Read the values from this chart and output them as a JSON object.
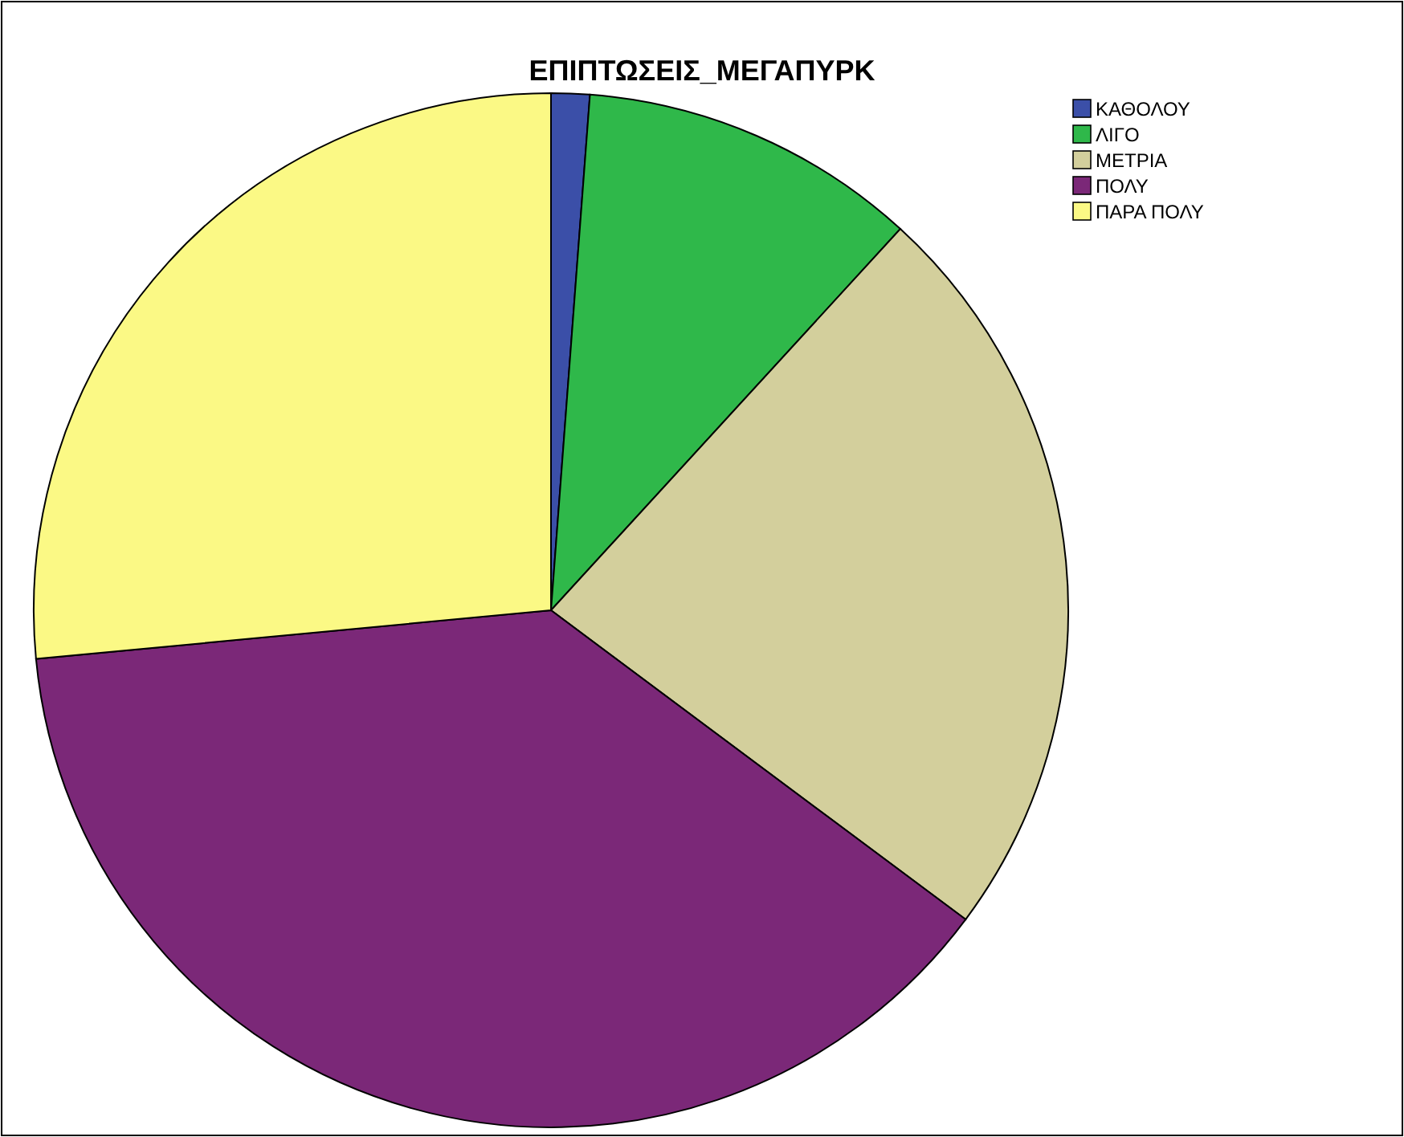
{
  "chart_data": {
    "type": "pie",
    "title": "ΕΠΙΠΤΩΣΕΙΣ_ΜΕΓΑΠΥΡΚ",
    "categories": [
      "ΚΑΘΟΛΟΥ",
      "ΛΙΓΟ",
      "ΜΕΤΡΙΑ",
      "ΠΟΛΥ",
      "ΠΑΡΑ ΠΟΛΥ"
    ],
    "values": [
      1.2,
      10.6,
      23.4,
      38.3,
      26.5
    ],
    "colors": [
      "#3b4fa8",
      "#2fb84a",
      "#d3cf9c",
      "#7b2878",
      "#fbf985"
    ],
    "legend": "top right"
  }
}
